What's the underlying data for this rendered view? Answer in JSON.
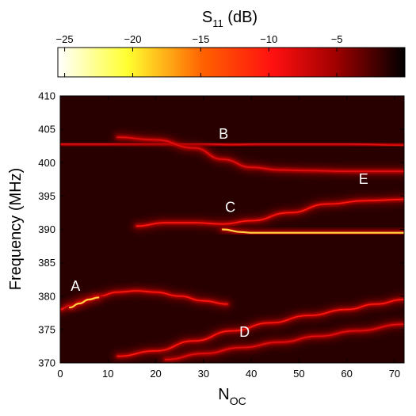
{
  "chart_data": {
    "type": "heatmap",
    "title": "",
    "colorbar": {
      "label_main": "S",
      "label_sub": "11",
      "label_unit": " (dB)",
      "ticks": [
        -25,
        -20,
        -15,
        -10,
        -5
      ],
      "tick_labels": [
        "−25",
        "−20",
        "−15",
        "−10",
        "−5"
      ],
      "range": [
        -25.5,
        0
      ],
      "colormap": "hot-reversed",
      "colors": [
        "#ffffff",
        "#ffff30",
        "#ff6000",
        "#ff1010",
        "#a00000",
        "#000000"
      ]
    },
    "xlabel_main": "N",
    "xlabel_sub": "OC",
    "ylabel": "Frequency (MHz)",
    "xlim": [
      0,
      72
    ],
    "ylim": [
      370,
      410
    ],
    "xticks": [
      0,
      10,
      20,
      30,
      40,
      50,
      60,
      70
    ],
    "yticks": [
      370,
      375,
      380,
      385,
      390,
      395,
      400,
      405,
      410
    ],
    "background": "#280000",
    "resonances": [
      {
        "name": "",
        "x": [
          0,
          5,
          10,
          16,
          22,
          30,
          36,
          42,
          50,
          60,
          72
        ],
        "y": [
          402.8,
          402.8,
          402.8,
          402.8,
          402.8,
          402.8,
          402.7,
          402.8,
          402.8,
          402.8,
          402.6
        ],
        "depth_db": -8
      },
      {
        "name": "",
        "x": [
          12,
          20,
          28,
          34,
          40,
          46,
          52,
          60,
          66,
          72
        ],
        "y": [
          403.8,
          403.4,
          402.2,
          400.5,
          399.3,
          398.9,
          398.8,
          398.7,
          398.7,
          398.7
        ],
        "depth_db": -8
      },
      {
        "name": "",
        "x": [
          16,
          22,
          28,
          34,
          40,
          48,
          56,
          64,
          72
        ],
        "y": [
          390.5,
          391.0,
          391.0,
          390.8,
          391.3,
          392.5,
          393.8,
          394.3,
          394.5
        ],
        "depth_db": -9
      },
      {
        "name": "",
        "x": [
          34,
          38,
          40,
          44,
          50,
          56,
          62,
          68,
          72
        ],
        "y": [
          390.0,
          389.6,
          389.5,
          389.5,
          389.5,
          389.5,
          389.5,
          389.5,
          389.5
        ],
        "depth_db": -16
      },
      {
        "name": "",
        "x": [
          0,
          2,
          5,
          8,
          12,
          16,
          20,
          25,
          30,
          35
        ],
        "y": [
          378.0,
          378.6,
          379.3,
          380.0,
          380.6,
          380.8,
          380.6,
          380.0,
          379.3,
          378.8
        ],
        "depth_db": -10
      },
      {
        "name": "",
        "x": [
          2,
          4,
          6,
          8
        ],
        "y": [
          378.3,
          378.9,
          379.5,
          379.8
        ],
        "depth_db": -20
      },
      {
        "name": "",
        "x": [
          12,
          20,
          28,
          36,
          44,
          52,
          60,
          66,
          72
        ],
        "y": [
          371.0,
          371.8,
          373.3,
          374.8,
          376.0,
          377.1,
          378.0,
          378.8,
          379.5
        ],
        "depth_db": -9
      },
      {
        "name": "",
        "x": [
          22,
          30,
          38,
          46,
          54,
          62,
          72
        ],
        "y": [
          370.5,
          371.4,
          372.3,
          373.1,
          374.0,
          374.8,
          375.8
        ],
        "depth_db": -8
      }
    ],
    "annotations": [
      {
        "text": "A",
        "x": 3.2,
        "y": 380.8
      },
      {
        "text": "B",
        "x": 34.2,
        "y": 403.6
      },
      {
        "text": "C",
        "x": 35.6,
        "y": 392.6
      },
      {
        "text": "D",
        "x": 38.6,
        "y": 373.9
      },
      {
        "text": "E",
        "x": 63.5,
        "y": 396.8
      }
    ]
  }
}
